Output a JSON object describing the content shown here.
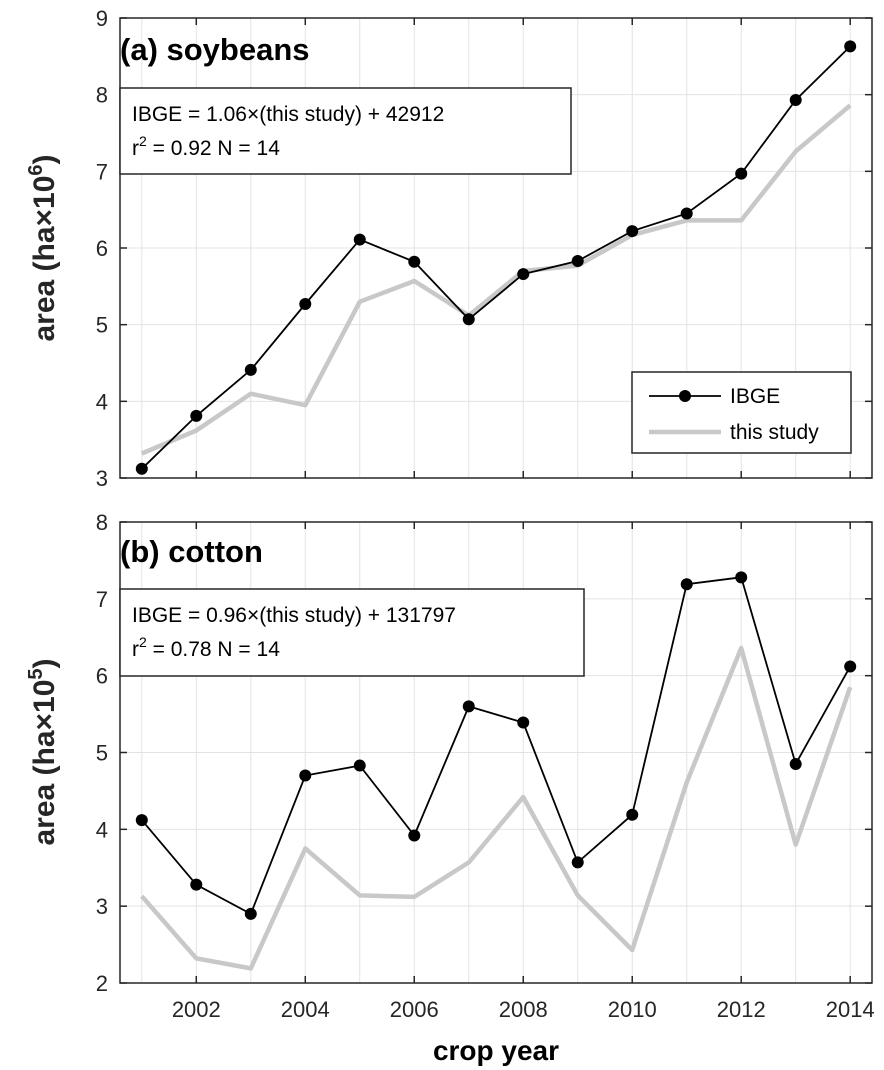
{
  "chart_data": [
    {
      "type": "line",
      "title": "(a) soybeans",
      "ylabel": "area (ha×10",
      "ylabel_exp": "6",
      "ylabel_close": ")",
      "xlabel": "",
      "ylim": [
        3,
        9
      ],
      "xlim": [
        2000.6,
        2014.4
      ],
      "x_ticks": [
        2002,
        2004,
        2006,
        2008,
        2010,
        2012,
        2014
      ],
      "y_ticks": [
        3,
        4,
        5,
        6,
        7,
        8,
        9
      ],
      "grid": true,
      "annotation": {
        "line1": "IBGE = 1.06×(this study) + 42912",
        "line2_pre": "r",
        "line2_exp": "2",
        "line2_post": " = 0.92  N = 14"
      },
      "legend": {
        "placement": "bottom-right",
        "items": [
          "IBGE",
          "this study"
        ]
      },
      "series": [
        {
          "name": "IBGE",
          "color": "#000000",
          "marker": "circle",
          "x": [
            2001,
            2002,
            2003,
            2004,
            2005,
            2006,
            2007,
            2008,
            2009,
            2010,
            2011,
            2012,
            2013,
            2014
          ],
          "values": [
            3.12,
            3.81,
            4.41,
            5.27,
            6.11,
            5.82,
            5.07,
            5.66,
            5.83,
            6.22,
            6.45,
            6.97,
            7.93,
            8.63
          ]
        },
        {
          "name": "this study",
          "color": "#c8c8c8",
          "marker": "none",
          "x": [
            2001,
            2002,
            2003,
            2004,
            2005,
            2006,
            2007,
            2008,
            2009,
            2010,
            2011,
            2012,
            2013,
            2014
          ],
          "values": [
            3.32,
            3.62,
            4.1,
            3.95,
            5.3,
            5.57,
            5.12,
            5.7,
            5.77,
            6.17,
            6.36,
            6.36,
            7.26,
            7.86
          ]
        }
      ]
    },
    {
      "type": "line",
      "title": "(b) cotton",
      "ylabel": "area (ha×10",
      "ylabel_exp": "5",
      "ylabel_close": ")",
      "xlabel": "crop year",
      "ylim": [
        2,
        8
      ],
      "xlim": [
        2000.6,
        2014.4
      ],
      "x_ticks": [
        2002,
        2004,
        2006,
        2008,
        2010,
        2012,
        2014
      ],
      "y_ticks": [
        2,
        3,
        4,
        5,
        6,
        7,
        8
      ],
      "grid": true,
      "annotation": {
        "line1": "IBGE = 0.96×(this study) + 131797",
        "line2_pre": "r",
        "line2_exp": "2",
        "line2_post": " = 0.78  N = 14"
      },
      "series": [
        {
          "name": "IBGE",
          "color": "#000000",
          "marker": "circle",
          "x": [
            2001,
            2002,
            2003,
            2004,
            2005,
            2006,
            2007,
            2008,
            2009,
            2010,
            2011,
            2012,
            2013,
            2014
          ],
          "values": [
            4.12,
            3.28,
            2.9,
            4.7,
            4.83,
            3.92,
            5.6,
            5.39,
            3.57,
            4.19,
            7.19,
            7.28,
            4.85,
            6.12
          ]
        },
        {
          "name": "this study",
          "color": "#c8c8c8",
          "marker": "none",
          "x": [
            2001,
            2002,
            2003,
            2004,
            2005,
            2006,
            2007,
            2008,
            2009,
            2010,
            2011,
            2012,
            2013,
            2014
          ],
          "values": [
            3.13,
            2.32,
            2.19,
            3.75,
            3.14,
            3.12,
            3.57,
            4.42,
            3.14,
            2.43,
            4.61,
            6.36,
            3.8,
            5.85
          ]
        }
      ]
    }
  ]
}
